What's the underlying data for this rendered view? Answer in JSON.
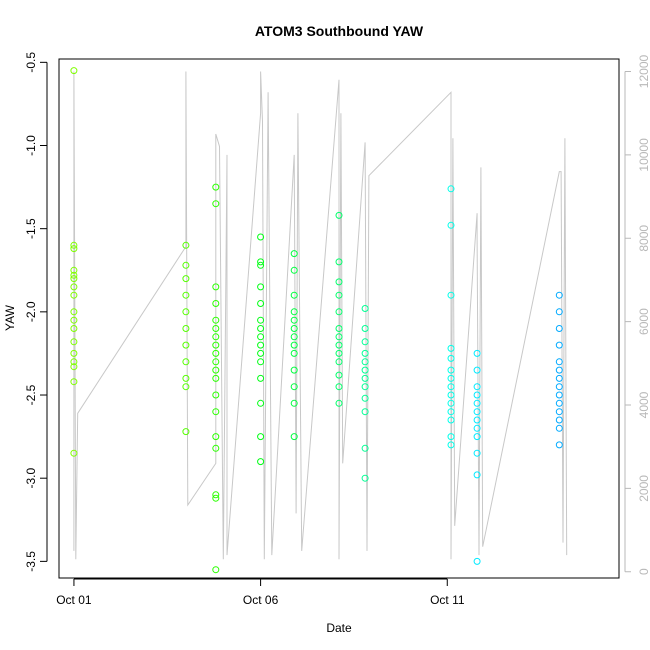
{
  "chart_data": {
    "type": "scatter",
    "title": "ATOM3 Southbound YAW",
    "xlabel": "Date",
    "ylabel": "YAW",
    "x_ticks": [
      "Oct 01",
      "Oct 06",
      "Oct 11"
    ],
    "x_tick_days": [
      1,
      6,
      11
    ],
    "xlim": [
      0.6,
      15.6
    ],
    "ylim": [
      -3.6,
      -0.48
    ],
    "y_ticks": [
      -3.5,
      -3.0,
      -2.5,
      -2.0,
      -1.5,
      -1.0,
      -0.5
    ],
    "y2_ticks": [
      0,
      2000,
      4000,
      6000,
      8000,
      10000,
      12000
    ],
    "y2lim": [
      -150,
      12300
    ],
    "grid": false,
    "legend": "none",
    "colors": {
      "line": "#c8c8c8",
      "axis": "#000000",
      "axis_right": "#b8b8b8"
    },
    "series": [
      {
        "color": "#7fff00",
        "points": [
          [
            1.0,
            -0.55
          ],
          [
            1.0,
            -1.6
          ],
          [
            1.0,
            -1.62
          ],
          [
            1.0,
            -1.75
          ],
          [
            1.0,
            -1.78
          ],
          [
            1.0,
            -1.8
          ],
          [
            1.0,
            -1.85
          ],
          [
            1.0,
            -1.9
          ],
          [
            1.0,
            -2.0
          ],
          [
            1.0,
            -2.05
          ],
          [
            1.0,
            -2.1
          ],
          [
            1.0,
            -2.18
          ],
          [
            1.0,
            -2.25
          ],
          [
            1.0,
            -2.3
          ],
          [
            1.0,
            -2.33
          ],
          [
            1.0,
            -2.42
          ],
          [
            1.0,
            -2.85
          ]
        ]
      },
      {
        "color": "#55ff00",
        "points": [
          [
            4.0,
            -1.6
          ],
          [
            4.0,
            -1.72
          ],
          [
            4.0,
            -1.8
          ],
          [
            4.0,
            -1.9
          ],
          [
            4.0,
            -2.0
          ],
          [
            4.0,
            -2.1
          ],
          [
            4.0,
            -2.2
          ],
          [
            4.0,
            -2.3
          ],
          [
            4.0,
            -2.4
          ],
          [
            4.0,
            -2.45
          ],
          [
            4.0,
            -2.72
          ]
        ]
      },
      {
        "color": "#2bff00",
        "points": [
          [
            4.8,
            -1.25
          ],
          [
            4.8,
            -1.35
          ],
          [
            4.8,
            -1.85
          ],
          [
            4.8,
            -1.95
          ],
          [
            4.8,
            -2.05
          ],
          [
            4.8,
            -2.1
          ],
          [
            4.8,
            -2.15
          ],
          [
            4.8,
            -2.2
          ],
          [
            4.8,
            -2.25
          ],
          [
            4.8,
            -2.3
          ],
          [
            4.8,
            -2.35
          ],
          [
            4.8,
            -2.4
          ],
          [
            4.8,
            -2.5
          ],
          [
            4.8,
            -2.6
          ],
          [
            4.8,
            -2.75
          ],
          [
            4.8,
            -2.82
          ],
          [
            4.8,
            -3.1
          ],
          [
            4.8,
            -3.12
          ],
          [
            4.8,
            -3.55
          ]
        ]
      },
      {
        "color": "#00ff15",
        "points": [
          [
            6.0,
            -1.55
          ],
          [
            6.0,
            -1.7
          ],
          [
            6.0,
            -1.72
          ],
          [
            6.0,
            -1.85
          ],
          [
            6.0,
            -1.95
          ],
          [
            6.0,
            -2.05
          ],
          [
            6.0,
            -2.1
          ],
          [
            6.0,
            -2.15
          ],
          [
            6.0,
            -2.2
          ],
          [
            6.0,
            -2.25
          ],
          [
            6.0,
            -2.3
          ],
          [
            6.0,
            -2.4
          ],
          [
            6.0,
            -2.55
          ],
          [
            6.0,
            -2.75
          ],
          [
            6.0,
            -2.9
          ]
        ]
      },
      {
        "color": "#00ff3f",
        "points": [
          [
            6.9,
            -1.65
          ],
          [
            6.9,
            -1.75
          ],
          [
            6.9,
            -1.9
          ],
          [
            6.9,
            -2.0
          ],
          [
            6.9,
            -2.05
          ],
          [
            6.9,
            -2.1
          ],
          [
            6.9,
            -2.15
          ],
          [
            6.9,
            -2.2
          ],
          [
            6.9,
            -2.25
          ],
          [
            6.9,
            -2.35
          ],
          [
            6.9,
            -2.45
          ],
          [
            6.9,
            -2.55
          ],
          [
            6.9,
            -2.75
          ]
        ]
      },
      {
        "color": "#00ff6a",
        "points": [
          [
            8.1,
            -1.42
          ],
          [
            8.1,
            -1.7
          ],
          [
            8.1,
            -1.82
          ],
          [
            8.1,
            -1.9
          ],
          [
            8.1,
            -2.0
          ],
          [
            8.1,
            -2.1
          ],
          [
            8.1,
            -2.15
          ],
          [
            8.1,
            -2.2
          ],
          [
            8.1,
            -2.25
          ],
          [
            8.1,
            -2.3
          ],
          [
            8.1,
            -2.38
          ],
          [
            8.1,
            -2.45
          ],
          [
            8.1,
            -2.55
          ]
        ]
      },
      {
        "color": "#00ff94",
        "points": [
          [
            8.8,
            -1.98
          ],
          [
            8.8,
            -2.1
          ],
          [
            8.8,
            -2.18
          ],
          [
            8.8,
            -2.25
          ],
          [
            8.8,
            -2.3
          ],
          [
            8.8,
            -2.35
          ],
          [
            8.8,
            -2.4
          ],
          [
            8.8,
            -2.45
          ],
          [
            8.8,
            -2.52
          ],
          [
            8.8,
            -2.6
          ],
          [
            8.8,
            -2.82
          ],
          [
            8.8,
            -3.0
          ]
        ]
      },
      {
        "color": "#00ffea",
        "points": [
          [
            11.1,
            -1.26
          ],
          [
            11.1,
            -1.48
          ],
          [
            11.1,
            -1.9
          ],
          [
            11.1,
            -2.22
          ],
          [
            11.1,
            -2.28
          ],
          [
            11.1,
            -2.35
          ],
          [
            11.1,
            -2.4
          ],
          [
            11.1,
            -2.45
          ],
          [
            11.1,
            -2.5
          ],
          [
            11.1,
            -2.55
          ],
          [
            11.1,
            -2.6
          ],
          [
            11.1,
            -2.65
          ],
          [
            11.1,
            -2.75
          ],
          [
            11.1,
            -2.8
          ]
        ]
      },
      {
        "color": "#00eaff",
        "points": [
          [
            11.8,
            -2.25
          ],
          [
            11.8,
            -2.35
          ],
          [
            11.8,
            -2.45
          ],
          [
            11.8,
            -2.5
          ],
          [
            11.8,
            -2.55
          ],
          [
            11.8,
            -2.6
          ],
          [
            11.8,
            -2.65
          ],
          [
            11.8,
            -2.7
          ],
          [
            11.8,
            -2.75
          ],
          [
            11.8,
            -2.85
          ],
          [
            11.8,
            -2.98
          ],
          [
            11.8,
            -3.5
          ]
        ]
      },
      {
        "color": "#00aaff",
        "points": [
          [
            14.0,
            -1.9
          ],
          [
            14.0,
            -2.0
          ],
          [
            14.0,
            -2.1
          ],
          [
            14.0,
            -2.2
          ],
          [
            14.0,
            -2.3
          ],
          [
            14.0,
            -2.35
          ],
          [
            14.0,
            -2.4
          ],
          [
            14.0,
            -2.45
          ],
          [
            14.0,
            -2.5
          ],
          [
            14.0,
            -2.55
          ],
          [
            14.0,
            -2.6
          ],
          [
            14.0,
            -2.65
          ],
          [
            14.0,
            -2.7
          ],
          [
            14.0,
            -2.8
          ]
        ]
      }
    ],
    "y2_line": [
      [
        1.0,
        500
      ],
      [
        1.0,
        12000
      ],
      [
        1.05,
        300
      ],
      [
        1.1,
        3800
      ],
      [
        4.0,
        7800
      ],
      [
        4.0,
        12000
      ],
      [
        4.05,
        1600
      ],
      [
        4.8,
        2600
      ],
      [
        4.8,
        10500
      ],
      [
        4.9,
        10200
      ],
      [
        5.0,
        300
      ],
      [
        5.1,
        10000
      ],
      [
        5.1,
        400
      ],
      [
        6.0,
        11000
      ],
      [
        6.0,
        12000
      ],
      [
        6.05,
        10800
      ],
      [
        6.1,
        300
      ],
      [
        6.2,
        11500
      ],
      [
        6.3,
        400
      ],
      [
        6.9,
        10000
      ],
      [
        6.95,
        1400
      ],
      [
        7.0,
        11000
      ],
      [
        7.1,
        500
      ],
      [
        8.1,
        11800
      ],
      [
        8.1,
        300
      ],
      [
        8.15,
        11000
      ],
      [
        8.2,
        2600
      ],
      [
        8.8,
        10300
      ],
      [
        8.85,
        500
      ],
      [
        8.9,
        9500
      ],
      [
        11.1,
        11500
      ],
      [
        11.1,
        300
      ],
      [
        11.15,
        10400
      ],
      [
        11.2,
        1100
      ],
      [
        11.8,
        8600
      ],
      [
        11.8,
        8000
      ],
      [
        11.85,
        400
      ],
      [
        11.9,
        9700
      ],
      [
        11.95,
        600
      ],
      [
        14.0,
        9600
      ],
      [
        14.05,
        9600
      ],
      [
        14.1,
        700
      ],
      [
        14.15,
        10400
      ],
      [
        14.2,
        400
      ]
    ]
  }
}
